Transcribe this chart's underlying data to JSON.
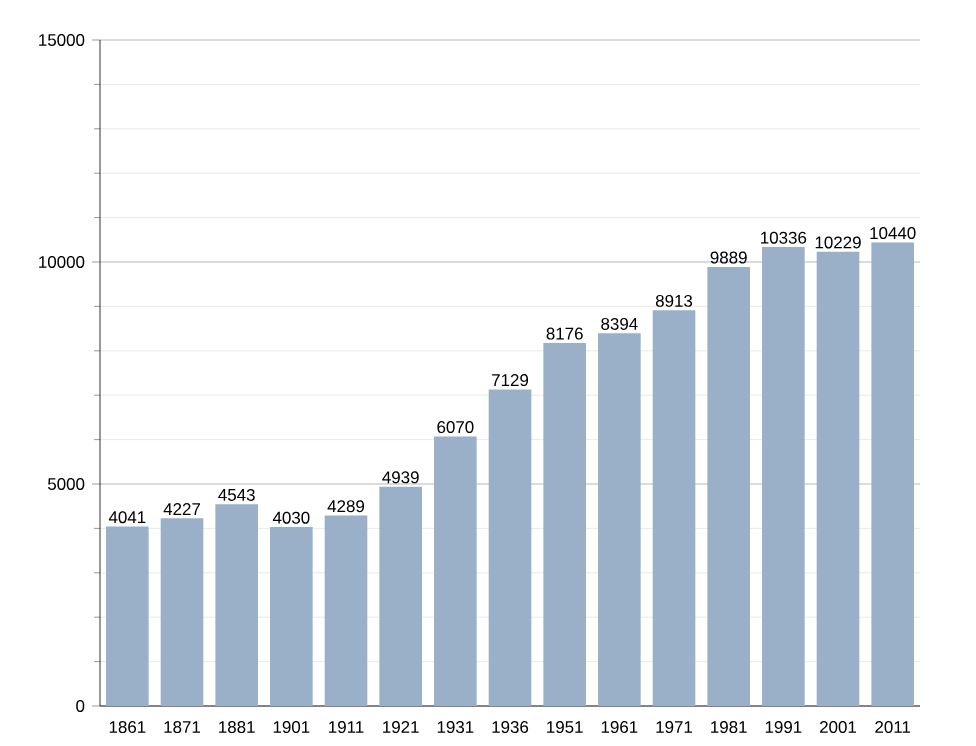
{
  "chart_data": {
    "type": "bar",
    "categories": [
      "1861",
      "1871",
      "1881",
      "1901",
      "1911",
      "1921",
      "1931",
      "1936",
      "1951",
      "1961",
      "1971",
      "1981",
      "1991",
      "2001",
      "2011"
    ],
    "values": [
      4041,
      4227,
      4543,
      4030,
      4289,
      4939,
      6070,
      7129,
      8176,
      8394,
      8913,
      9889,
      10336,
      10229,
      10440
    ],
    "color": "#9ab0c9",
    "ylim": [
      0,
      15000
    ],
    "yticks": [
      0,
      5000,
      10000,
      15000
    ],
    "grid": "y",
    "data_labels": true
  }
}
